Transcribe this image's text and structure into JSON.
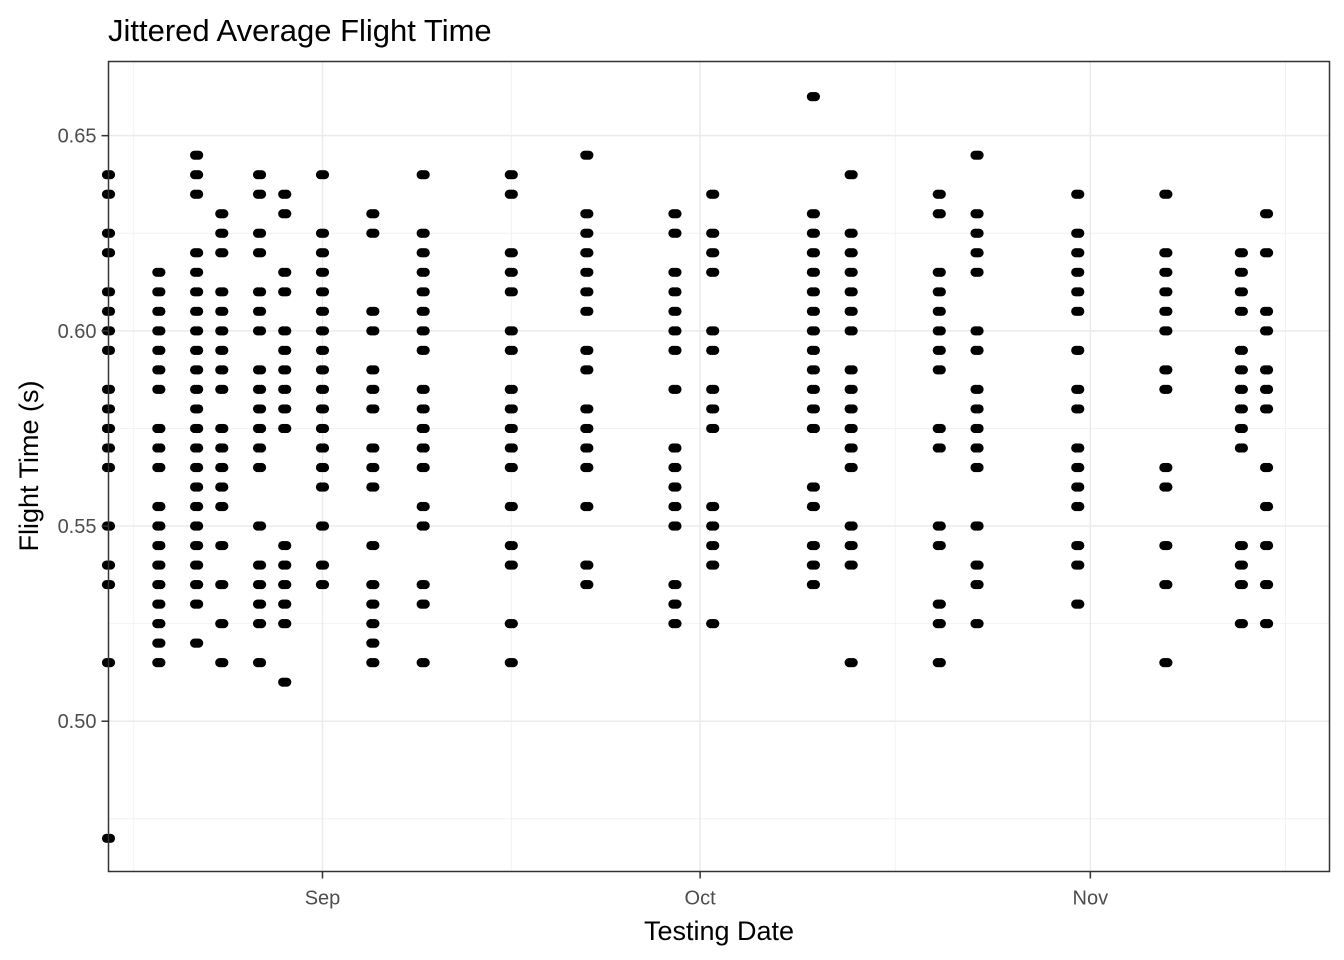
{
  "chart_data": {
    "type": "scatter",
    "title": "Jittered Average Flight Time",
    "xlabel": "Testing Date",
    "ylabel": "Flight Time (s)",
    "x_axis_type": "date",
    "xlim": [
      "2021-08-15",
      "2021-11-20"
    ],
    "ylim": [
      0.4615,
      0.669
    ],
    "x_ticks": [
      {
        "date": "2021-09-01",
        "label": "Sep"
      },
      {
        "date": "2021-10-01",
        "label": "Oct"
      },
      {
        "date": "2021-11-01",
        "label": "Nov"
      }
    ],
    "y_ticks": [
      {
        "value": 0.5,
        "label": "0.50"
      },
      {
        "value": 0.55,
        "label": "0.55"
      },
      {
        "value": 0.6,
        "label": "0.60"
      },
      {
        "value": 0.65,
        "label": "0.65"
      }
    ],
    "grid": true,
    "legend": "none",
    "point_color": "#000000",
    "groups": [
      {
        "date": "2021-08-15",
        "values": [
          0.64,
          0.635,
          0.625,
          0.62,
          0.61,
          0.605,
          0.6,
          0.595,
          0.585,
          0.58,
          0.575,
          0.57,
          0.565,
          0.55,
          0.54,
          0.535,
          0.515,
          0.47
        ]
      },
      {
        "date": "2021-08-19",
        "values": [
          0.615,
          0.61,
          0.605,
          0.6,
          0.595,
          0.59,
          0.585,
          0.575,
          0.57,
          0.565,
          0.555,
          0.55,
          0.545,
          0.54,
          0.535,
          0.53,
          0.525,
          0.52,
          0.515
        ]
      },
      {
        "date": "2021-08-22",
        "values": [
          0.645,
          0.64,
          0.635,
          0.62,
          0.615,
          0.61,
          0.605,
          0.6,
          0.595,
          0.59,
          0.585,
          0.58,
          0.575,
          0.57,
          0.565,
          0.56,
          0.555,
          0.55,
          0.545,
          0.54,
          0.535,
          0.53,
          0.52
        ]
      },
      {
        "date": "2021-08-24",
        "values": [
          0.63,
          0.625,
          0.62,
          0.61,
          0.605,
          0.6,
          0.595,
          0.59,
          0.585,
          0.575,
          0.57,
          0.565,
          0.56,
          0.555,
          0.545,
          0.535,
          0.525,
          0.515
        ]
      },
      {
        "date": "2021-08-27",
        "values": [
          0.64,
          0.635,
          0.625,
          0.62,
          0.61,
          0.605,
          0.6,
          0.59,
          0.585,
          0.58,
          0.575,
          0.57,
          0.565,
          0.55,
          0.54,
          0.535,
          0.53,
          0.525,
          0.515
        ]
      },
      {
        "date": "2021-08-29",
        "values": [
          0.635,
          0.63,
          0.615,
          0.61,
          0.6,
          0.595,
          0.59,
          0.585,
          0.58,
          0.575,
          0.545,
          0.54,
          0.535,
          0.53,
          0.525,
          0.51
        ]
      },
      {
        "date": "2021-09-01",
        "values": [
          0.64,
          0.625,
          0.62,
          0.615,
          0.61,
          0.605,
          0.6,
          0.595,
          0.59,
          0.585,
          0.58,
          0.575,
          0.57,
          0.565,
          0.56,
          0.55,
          0.54,
          0.535
        ]
      },
      {
        "date": "2021-09-05",
        "values": [
          0.63,
          0.625,
          0.605,
          0.6,
          0.59,
          0.585,
          0.58,
          0.57,
          0.565,
          0.56,
          0.545,
          0.535,
          0.53,
          0.525,
          0.52,
          0.515
        ]
      },
      {
        "date": "2021-09-09",
        "values": [
          0.64,
          0.625,
          0.62,
          0.615,
          0.61,
          0.605,
          0.6,
          0.595,
          0.585,
          0.58,
          0.575,
          0.57,
          0.565,
          0.555,
          0.55,
          0.535,
          0.53,
          0.515
        ]
      },
      {
        "date": "2021-09-16",
        "values": [
          0.64,
          0.635,
          0.62,
          0.615,
          0.61,
          0.6,
          0.595,
          0.585,
          0.58,
          0.575,
          0.57,
          0.565,
          0.555,
          0.545,
          0.54,
          0.525,
          0.515
        ]
      },
      {
        "date": "2021-09-22",
        "values": [
          0.645,
          0.63,
          0.625,
          0.62,
          0.615,
          0.61,
          0.605,
          0.595,
          0.59,
          0.58,
          0.575,
          0.57,
          0.565,
          0.555,
          0.54,
          0.535
        ]
      },
      {
        "date": "2021-09-29",
        "values": [
          0.63,
          0.625,
          0.615,
          0.61,
          0.605,
          0.6,
          0.595,
          0.585,
          0.57,
          0.565,
          0.56,
          0.555,
          0.55,
          0.535,
          0.53,
          0.525
        ]
      },
      {
        "date": "2021-10-02",
        "values": [
          0.635,
          0.625,
          0.62,
          0.615,
          0.6,
          0.595,
          0.585,
          0.58,
          0.575,
          0.555,
          0.55,
          0.545,
          0.54,
          0.525
        ]
      },
      {
        "date": "2021-10-10",
        "values": [
          0.66,
          0.63,
          0.625,
          0.62,
          0.615,
          0.61,
          0.605,
          0.6,
          0.595,
          0.59,
          0.585,
          0.58,
          0.575,
          0.56,
          0.555,
          0.545,
          0.54,
          0.535
        ]
      },
      {
        "date": "2021-10-13",
        "values": [
          0.64,
          0.625,
          0.62,
          0.615,
          0.61,
          0.605,
          0.6,
          0.59,
          0.585,
          0.58,
          0.575,
          0.57,
          0.565,
          0.55,
          0.545,
          0.54,
          0.515
        ]
      },
      {
        "date": "2021-10-20",
        "values": [
          0.635,
          0.63,
          0.615,
          0.61,
          0.605,
          0.6,
          0.595,
          0.59,
          0.575,
          0.57,
          0.55,
          0.545,
          0.53,
          0.525,
          0.515
        ]
      },
      {
        "date": "2021-10-23",
        "values": [
          0.645,
          0.63,
          0.625,
          0.62,
          0.615,
          0.6,
          0.595,
          0.585,
          0.58,
          0.575,
          0.57,
          0.565,
          0.55,
          0.54,
          0.535,
          0.525
        ]
      },
      {
        "date": "2021-10-31",
        "values": [
          0.635,
          0.625,
          0.62,
          0.615,
          0.61,
          0.605,
          0.595,
          0.585,
          0.58,
          0.57,
          0.565,
          0.56,
          0.555,
          0.545,
          0.54,
          0.53
        ]
      },
      {
        "date": "2021-11-07",
        "values": [
          0.635,
          0.62,
          0.615,
          0.61,
          0.605,
          0.6,
          0.59,
          0.585,
          0.565,
          0.56,
          0.545,
          0.535,
          0.515
        ]
      },
      {
        "date": "2021-11-13",
        "values": [
          0.62,
          0.615,
          0.61,
          0.605,
          0.595,
          0.59,
          0.585,
          0.58,
          0.575,
          0.57,
          0.545,
          0.54,
          0.535,
          0.525
        ]
      },
      {
        "date": "2021-11-15",
        "values": [
          0.63,
          0.62,
          0.605,
          0.6,
          0.59,
          0.585,
          0.58,
          0.565,
          0.555,
          0.545,
          0.535,
          0.525
        ]
      }
    ]
  }
}
